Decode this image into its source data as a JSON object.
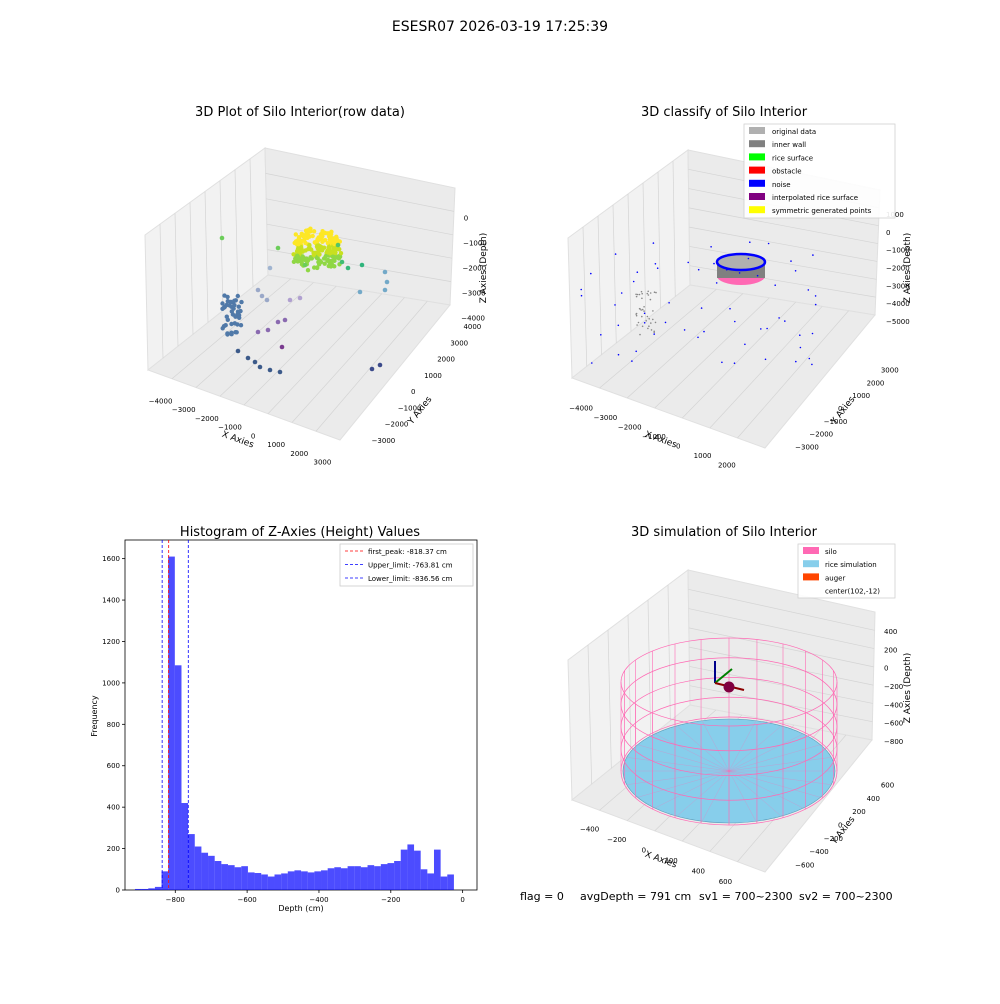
{
  "suptitle": "ESESR07 2026-03-19 17:25:39",
  "footer": {
    "flag": "flag = 0",
    "avg_depth": "avgDepth = 791 cm",
    "sv1": "sv1 = 700~2300",
    "sv2": "sv2 = 700~2300"
  },
  "chart_data": [
    {
      "type": "scatter",
      "projection": "3d",
      "title": "3D Plot of Silo Interior(row data)",
      "xlabel": "X Axies",
      "ylabel": "Y Axies",
      "zlabel": "Z Axies (Depth)",
      "xticks": [
        "−4000",
        "−3000",
        "−2000",
        "−1000",
        "0",
        "1000",
        "2000",
        "3000"
      ],
      "yticks": [
        "−3000",
        "−2000",
        "−1000",
        "0",
        "1000",
        "2000",
        "3000",
        "4000"
      ],
      "zticks": [
        "0",
        "−1000",
        "−2000",
        "−3000",
        "−4000"
      ],
      "colormap": "viridis",
      "legend": null,
      "note": "dense yellow-green cluster near the top center; scattered points lower left colored purple/blue"
    },
    {
      "type": "scatter",
      "projection": "3d",
      "title": "3D classify of Silo Interior",
      "xlabel": "X Axies",
      "ylabel": "Y Axies",
      "zlabel": "Z Axies (Depth)",
      "xticks": [
        "−4000",
        "−3000",
        "−2000",
        "−1000",
        "0",
        "1000",
        "2000"
      ],
      "yticks": [
        "−3000",
        "−2000",
        "−1000",
        "0",
        "1000",
        "2000",
        "3000"
      ],
      "zticks": [
        "1000",
        "0",
        "−1000",
        "−2000",
        "−3000",
        "−4000",
        "−5000"
      ],
      "legend": [
        {
          "label": "original data",
          "color": "#b0b0b0"
        },
        {
          "label": "inner wall",
          "color": "#808080"
        },
        {
          "label": "rice surface",
          "color": "#00ff00"
        },
        {
          "label": "obstacle",
          "color": "#ff0000"
        },
        {
          "label": "noise",
          "color": "#0000ff"
        },
        {
          "label": "interpolated rice surface",
          "color": "#800080"
        },
        {
          "label": "symmetric generated points",
          "color": "#ffff00"
        }
      ]
    },
    {
      "type": "bar",
      "title": "Histogram of Z-Axies (Height) Values",
      "xlabel": "Depth (cm)",
      "ylabel": "Frequency",
      "xlim": [
        -940,
        40
      ],
      "ylim": [
        0,
        1690
      ],
      "xticks": [
        "−800",
        "−600",
        "−400",
        "−200",
        "0"
      ],
      "yticks": [
        "0",
        "200",
        "400",
        "600",
        "800",
        "1000",
        "1200",
        "1400",
        "1600"
      ],
      "bar_color": "#0000ff",
      "bar_width": 18.5,
      "bins": [
        {
          "x": -903,
          "v": 5
        },
        {
          "x": -884.5,
          "v": 5
        },
        {
          "x": -866,
          "v": 8
        },
        {
          "x": -847.5,
          "v": 15
        },
        {
          "x": -829,
          "v": 90
        },
        {
          "x": -810.5,
          "v": 1610
        },
        {
          "x": -792,
          "v": 1085
        },
        {
          "x": -773.5,
          "v": 420
        },
        {
          "x": -755,
          "v": 270
        },
        {
          "x": -736.5,
          "v": 210
        },
        {
          "x": -718,
          "v": 180
        },
        {
          "x": -699.5,
          "v": 165
        },
        {
          "x": -681,
          "v": 140
        },
        {
          "x": -662.5,
          "v": 125
        },
        {
          "x": -644,
          "v": 120
        },
        {
          "x": -625.5,
          "v": 110
        },
        {
          "x": -607,
          "v": 115
        },
        {
          "x": -588.5,
          "v": 85
        },
        {
          "x": -570,
          "v": 82
        },
        {
          "x": -551.5,
          "v": 75
        },
        {
          "x": -533,
          "v": 65
        },
        {
          "x": -514.5,
          "v": 75
        },
        {
          "x": -496,
          "v": 80
        },
        {
          "x": -477.5,
          "v": 90
        },
        {
          "x": -459,
          "v": 95
        },
        {
          "x": -440.5,
          "v": 90
        },
        {
          "x": -422,
          "v": 85
        },
        {
          "x": -403.5,
          "v": 90
        },
        {
          "x": -385,
          "v": 95
        },
        {
          "x": -366.5,
          "v": 105
        },
        {
          "x": -348,
          "v": 110
        },
        {
          "x": -329.5,
          "v": 105
        },
        {
          "x": -311,
          "v": 115
        },
        {
          "x": -292.5,
          "v": 115
        },
        {
          "x": -274,
          "v": 110
        },
        {
          "x": -255.5,
          "v": 120
        },
        {
          "x": -237,
          "v": 115
        },
        {
          "x": -218.5,
          "v": 125
        },
        {
          "x": -200,
          "v": 130
        },
        {
          "x": -181.5,
          "v": 140
        },
        {
          "x": -163,
          "v": 195
        },
        {
          "x": -144.5,
          "v": 220
        },
        {
          "x": -126,
          "v": 190
        },
        {
          "x": -107.5,
          "v": 100
        },
        {
          "x": -89,
          "v": 80
        },
        {
          "x": -70.5,
          "v": 195
        },
        {
          "x": -52,
          "v": 65
        },
        {
          "x": -33.5,
          "v": 75
        }
      ],
      "vlines": [
        {
          "label": "first_peak: -818.37 cm",
          "x": -818.37,
          "color": "#ff0000"
        },
        {
          "label": "Upper_limit: -763.81 cm",
          "x": -763.81,
          "color": "#0000ff"
        },
        {
          "label": "Lower_limit: -836.56 cm",
          "x": -836.56,
          "color": "#0000ff"
        }
      ]
    },
    {
      "type": "scatter",
      "projection": "3d",
      "title": "3D simulation of Silo Interior",
      "xlabel": "X Axies",
      "ylabel": "Y Axies",
      "zlabel": "Z Axies (Depth)",
      "xticks": [
        "−400",
        "−200",
        "0",
        "200",
        "400",
        "600"
      ],
      "yticks": [
        "−600",
        "−400",
        "−200",
        "0",
        "200",
        "400",
        "600"
      ],
      "zticks": [
        "400",
        "200",
        "0",
        "−200",
        "−400",
        "−600",
        "−800"
      ],
      "legend": [
        {
          "label": "silo",
          "color": "#ff69b4"
        },
        {
          "label": "rice simulation",
          "color": "#87ceeb"
        },
        {
          "label": "auger",
          "color": "#ff4500"
        },
        {
          "label": "center(102,-12)",
          "color": ""
        }
      ]
    }
  ]
}
